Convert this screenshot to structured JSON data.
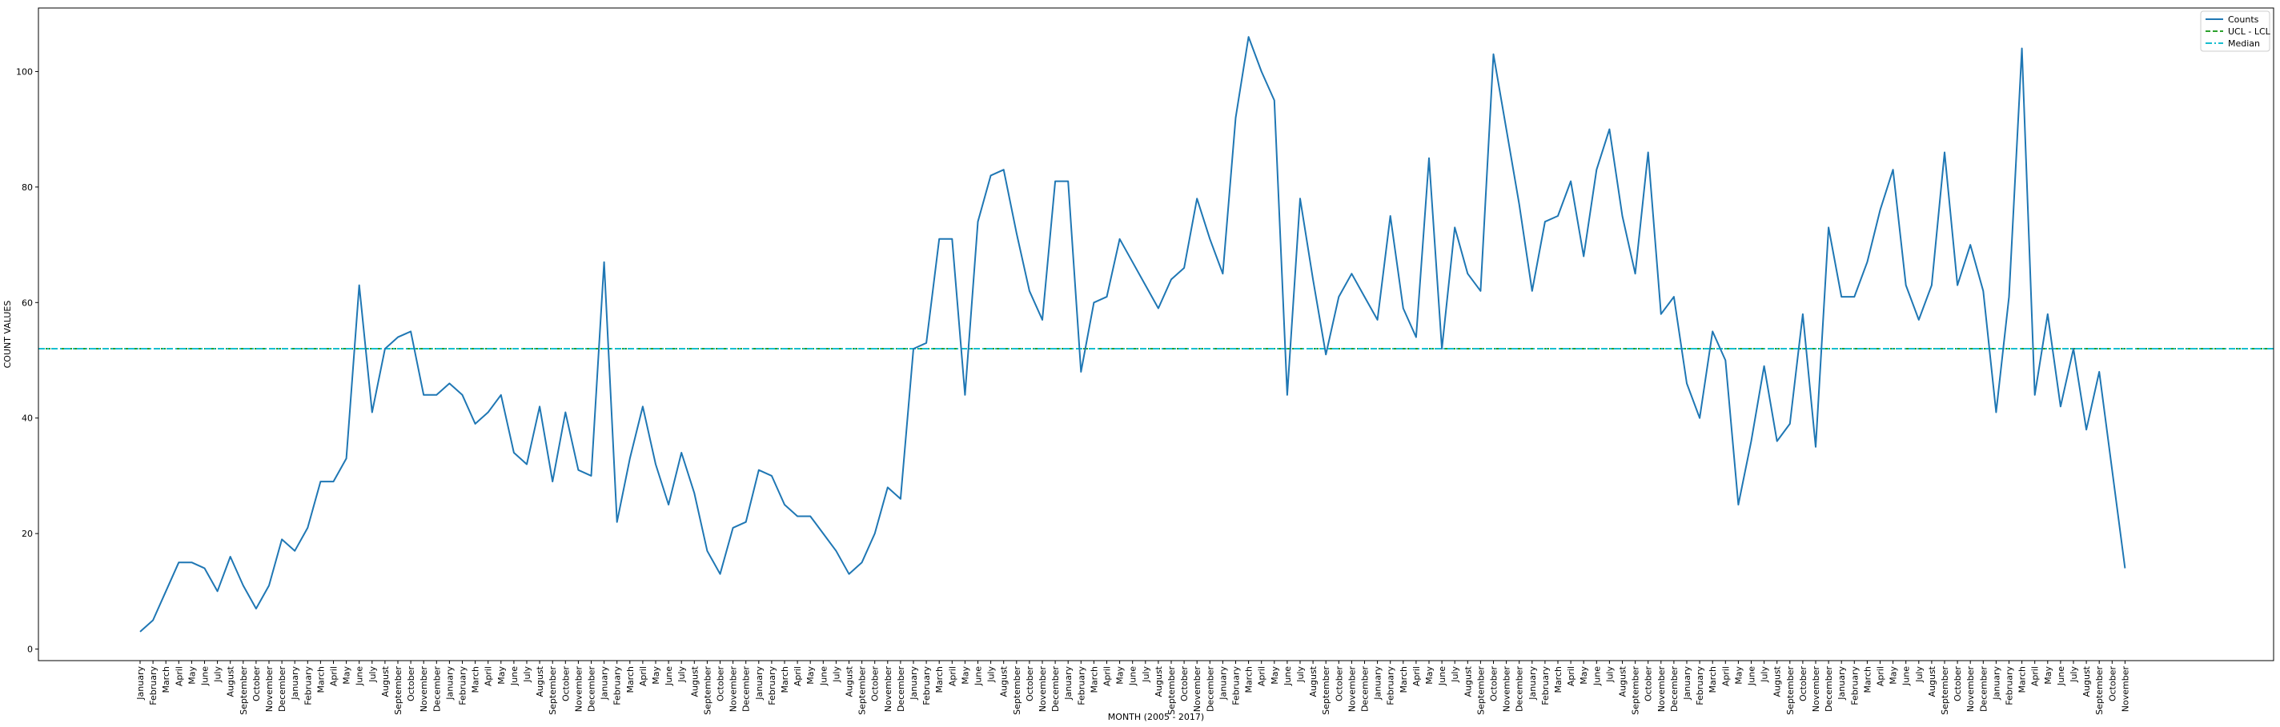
{
  "chart_data": {
    "type": "line",
    "xlabel": "MONTH (2005 - 2017)",
    "ylabel": "COUNT VALUES",
    "ylim": [
      -2,
      111
    ],
    "yticks": [
      0,
      20,
      40,
      60,
      80,
      100
    ],
    "grid": false,
    "legend_position": "top-right",
    "legend": [
      {
        "label": "Counts",
        "style": "solid",
        "color": "#1f77b4"
      },
      {
        "label": "UCL - LCL",
        "style": "dashed",
        "color": "#2ca02c"
      },
      {
        "label": "Median",
        "style": "dashdot",
        "color": "#17becf"
      }
    ],
    "categories": [
      "January",
      "February",
      "March",
      "April",
      "May",
      "June",
      "July",
      "August",
      "September",
      "October",
      "November",
      "December",
      "January",
      "February",
      "March",
      "April",
      "May",
      "June",
      "July",
      "August",
      "September",
      "October",
      "November",
      "December",
      "January",
      "February",
      "March",
      "April",
      "May",
      "June",
      "July",
      "August",
      "September",
      "October",
      "November",
      "December",
      "January",
      "February",
      "March",
      "April",
      "May",
      "June",
      "July",
      "August",
      "September",
      "October",
      "November",
      "December",
      "January",
      "February",
      "March",
      "April",
      "May",
      "June",
      "July",
      "August",
      "September",
      "October",
      "November",
      "December",
      "January",
      "February",
      "March",
      "April",
      "May",
      "June",
      "July",
      "August",
      "September",
      "October",
      "November",
      "December",
      "January",
      "February",
      "March",
      "April",
      "May",
      "June",
      "July",
      "August",
      "September",
      "October",
      "November",
      "December",
      "January",
      "February",
      "March",
      "April",
      "May",
      "June",
      "July",
      "August",
      "September",
      "October",
      "November",
      "December",
      "January",
      "February",
      "March",
      "April",
      "May",
      "June",
      "July",
      "August",
      "September",
      "October",
      "November",
      "December",
      "January",
      "February",
      "March",
      "April",
      "May",
      "June",
      "July",
      "August",
      "September",
      "October",
      "November",
      "December",
      "January",
      "February",
      "March",
      "April",
      "May",
      "June",
      "July",
      "August",
      "September",
      "October",
      "November",
      "December",
      "January",
      "February",
      "March",
      "April",
      "May",
      "June",
      "July",
      "August",
      "September",
      "October",
      "November",
      "December",
      "January",
      "February",
      "March",
      "April",
      "May",
      "June",
      "July",
      "August",
      "September",
      "October",
      "November"
    ],
    "series": [
      {
        "name": "Counts",
        "color": "#1f77b4",
        "values": [
          3,
          5,
          10,
          15,
          15,
          14,
          10,
          16,
          11,
          7,
          11,
          19,
          17,
          21,
          29,
          29,
          33,
          63,
          41,
          52,
          54,
          55,
          44,
          44,
          46,
          44,
          39,
          41,
          44,
          34,
          32,
          42,
          29,
          41,
          31,
          30,
          67,
          22,
          33,
          42,
          32,
          25,
          34,
          27,
          17,
          13,
          21,
          22,
          31,
          30,
          25,
          23,
          23,
          20,
          17,
          13,
          15,
          20,
          28,
          26,
          52,
          53,
          71,
          71,
          44,
          74,
          82,
          83,
          72,
          62,
          57,
          81,
          81,
          48,
          60,
          61,
          71,
          67,
          63,
          59,
          64,
          66,
          78,
          71,
          65,
          92,
          106,
          100,
          95,
          44,
          78,
          64,
          51,
          61,
          65,
          61,
          57,
          75,
          59,
          54,
          85,
          52,
          73,
          65,
          62,
          103,
          90,
          77,
          62,
          74,
          75,
          81,
          68,
          83,
          90,
          75,
          65,
          86,
          58,
          61,
          46,
          40,
          55,
          50,
          25,
          36,
          49,
          36,
          39,
          58,
          35,
          73,
          61,
          61,
          67,
          76,
          83,
          63,
          57,
          63,
          86,
          63,
          70,
          62,
          41,
          61,
          104,
          44,
          58,
          42,
          52,
          38,
          48,
          31,
          14
        ]
      },
      {
        "name": "UCL - LCL",
        "color": "#2ca02c",
        "constant": 52
      },
      {
        "name": "Median",
        "color": "#17becf",
        "constant": 52
      }
    ]
  }
}
